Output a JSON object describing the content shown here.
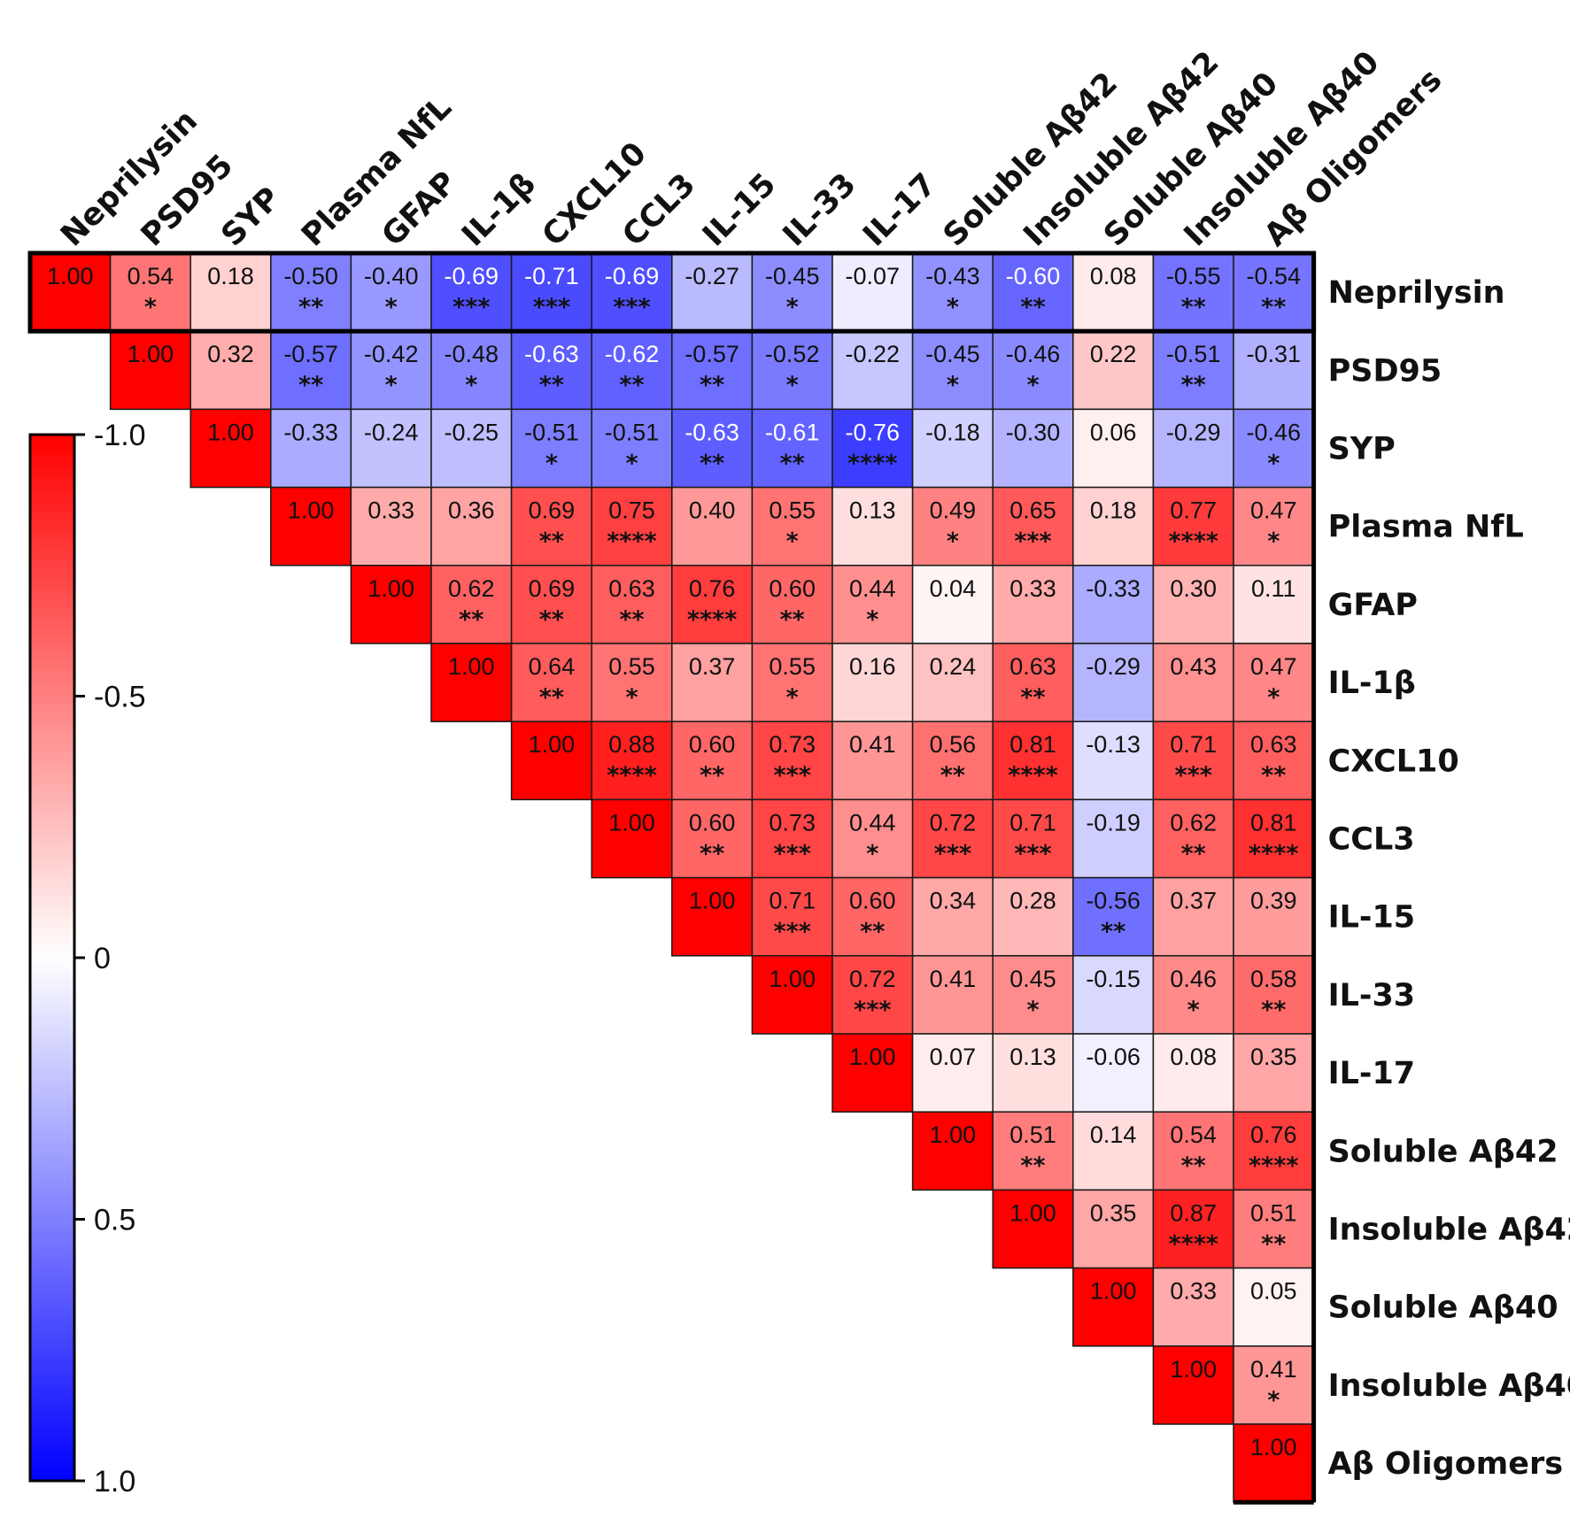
{
  "chart_data": {
    "type": "heatmap",
    "labels": [
      "Neprilysin",
      "PSD95",
      "SYP",
      "Plasma NfL",
      "GFAP",
      "IL-1β",
      "CXCL10",
      "CCL3",
      "IL-15",
      "IL-33",
      "IL-17",
      "Soluble Aβ42",
      "Insoluble Aβ42",
      "Soluble Aβ40",
      "Insoluble Aβ40",
      "Aβ Oligomers"
    ],
    "values": [
      [
        1.0,
        0.54,
        0.18,
        -0.5,
        -0.4,
        -0.69,
        -0.71,
        -0.69,
        -0.27,
        -0.45,
        -0.07,
        -0.43,
        -0.6,
        0.08,
        -0.55,
        -0.54
      ],
      [
        null,
        1.0,
        0.32,
        -0.57,
        -0.42,
        -0.48,
        -0.63,
        -0.62,
        -0.57,
        -0.52,
        -0.22,
        -0.45,
        -0.46,
        0.22,
        -0.51,
        -0.31
      ],
      [
        null,
        null,
        1.0,
        -0.33,
        -0.24,
        -0.25,
        -0.51,
        -0.51,
        -0.63,
        -0.61,
        -0.76,
        -0.18,
        -0.3,
        0.06,
        -0.29,
        -0.46
      ],
      [
        null,
        null,
        null,
        1.0,
        0.33,
        0.36,
        0.69,
        0.75,
        0.4,
        0.55,
        0.13,
        0.49,
        0.65,
        0.18,
        0.77,
        0.47
      ],
      [
        null,
        null,
        null,
        null,
        1.0,
        0.62,
        0.69,
        0.63,
        0.76,
        0.6,
        0.44,
        0.04,
        0.33,
        -0.33,
        0.3,
        0.11
      ],
      [
        null,
        null,
        null,
        null,
        null,
        1.0,
        0.64,
        0.55,
        0.37,
        0.55,
        0.16,
        0.24,
        0.63,
        -0.29,
        0.43,
        0.47
      ],
      [
        null,
        null,
        null,
        null,
        null,
        null,
        1.0,
        0.88,
        0.6,
        0.73,
        0.41,
        0.56,
        0.81,
        -0.13,
        0.71,
        0.63
      ],
      [
        null,
        null,
        null,
        null,
        null,
        null,
        null,
        1.0,
        0.6,
        0.73,
        0.44,
        0.72,
        0.71,
        -0.19,
        0.62,
        0.81
      ],
      [
        null,
        null,
        null,
        null,
        null,
        null,
        null,
        null,
        1.0,
        0.71,
        0.6,
        0.34,
        0.28,
        -0.56,
        0.37,
        0.39
      ],
      [
        null,
        null,
        null,
        null,
        null,
        null,
        null,
        null,
        null,
        1.0,
        0.72,
        0.41,
        0.45,
        -0.15,
        0.46,
        0.58
      ],
      [
        null,
        null,
        null,
        null,
        null,
        null,
        null,
        null,
        null,
        null,
        1.0,
        0.07,
        0.13,
        -0.06,
        0.08,
        0.35
      ],
      [
        null,
        null,
        null,
        null,
        null,
        null,
        null,
        null,
        null,
        null,
        null,
        1.0,
        0.51,
        0.14,
        0.54,
        0.76
      ],
      [
        null,
        null,
        null,
        null,
        null,
        null,
        null,
        null,
        null,
        null,
        null,
        null,
        1.0,
        0.35,
        0.87,
        0.51
      ],
      [
        null,
        null,
        null,
        null,
        null,
        null,
        null,
        null,
        null,
        null,
        null,
        null,
        null,
        1.0,
        0.33,
        0.05
      ],
      [
        null,
        null,
        null,
        null,
        null,
        null,
        null,
        null,
        null,
        null,
        null,
        null,
        null,
        null,
        1.0,
        0.41
      ],
      [
        null,
        null,
        null,
        null,
        null,
        null,
        null,
        null,
        null,
        null,
        null,
        null,
        null,
        null,
        null,
        1.0
      ]
    ],
    "significance": [
      [
        "",
        "*",
        "",
        "**",
        "*",
        "***",
        "***",
        "***",
        "",
        "*",
        "",
        "*",
        "**",
        "",
        "**",
        "**"
      ],
      [
        "",
        "",
        "",
        "**",
        "*",
        "*",
        "**",
        "**",
        "**",
        "*",
        "",
        "*",
        "*",
        "",
        "**",
        ""
      ],
      [
        "",
        "",
        "",
        "",
        "",
        "",
        "*",
        "*",
        "**",
        "**",
        "****",
        "",
        "",
        "",
        "",
        "*"
      ],
      [
        "",
        "",
        "",
        "",
        "",
        "",
        "**",
        "****",
        "",
        "*",
        "",
        "*",
        "***",
        "",
        "****",
        "*"
      ],
      [
        "",
        "",
        "",
        "",
        "",
        "**",
        "**",
        "**",
        "****",
        "**",
        "*",
        "",
        "",
        "",
        "",
        ""
      ],
      [
        "",
        "",
        "",
        "",
        "",
        "",
        "**",
        "*",
        "",
        "*",
        "",
        "",
        "**",
        "",
        "",
        "*"
      ],
      [
        "",
        "",
        "",
        "",
        "",
        "",
        "",
        "****",
        "**",
        "***",
        "",
        "**",
        "****",
        "",
        "***",
        "**"
      ],
      [
        "",
        "",
        "",
        "",
        "",
        "",
        "",
        "",
        "**",
        "***",
        "*",
        "***",
        "***",
        "",
        "**",
        "****"
      ],
      [
        "",
        "",
        "",
        "",
        "",
        "",
        "",
        "",
        "",
        "***",
        "**",
        "",
        "",
        "**",
        "",
        ""
      ],
      [
        "",
        "",
        "",
        "",
        "",
        "",
        "",
        "",
        "",
        "",
        "***",
        "",
        "*",
        "",
        "*",
        "**"
      ],
      [
        "",
        "",
        "",
        "",
        "",
        "",
        "",
        "",
        "",
        "",
        "",
        "",
        "",
        "",
        "",
        ""
      ],
      [
        "",
        "",
        "",
        "",
        "",
        "",
        "",
        "",
        "",
        "",
        "",
        "",
        "**",
        "",
        "**",
        "****"
      ],
      [
        "",
        "",
        "",
        "",
        "",
        "",
        "",
        "",
        "",
        "",
        "",
        "",
        "",
        "",
        "****",
        "**"
      ],
      [
        "",
        "",
        "",
        "",
        "",
        "",
        "",
        "",
        "",
        "",
        "",
        "",
        "",
        "",
        "",
        ""
      ],
      [
        "",
        "",
        "",
        "",
        "",
        "",
        "",
        "",
        "",
        "",
        "",
        "",
        "",
        "",
        "",
        "*"
      ],
      [
        "",
        "",
        "",
        "",
        "",
        "",
        "",
        "",
        "",
        "",
        "",
        "",
        "",
        "",
        "",
        ""
      ]
    ],
    "colorbar": {
      "range": [
        -1.0,
        1.0
      ],
      "ticks": [
        "1.0",
        "0.5",
        "0",
        "-0.5",
        "-1.0"
      ]
    },
    "colors": {
      "positive": "#ff0000",
      "neutral": "#ffffff",
      "negative": "#0000ff"
    }
  }
}
